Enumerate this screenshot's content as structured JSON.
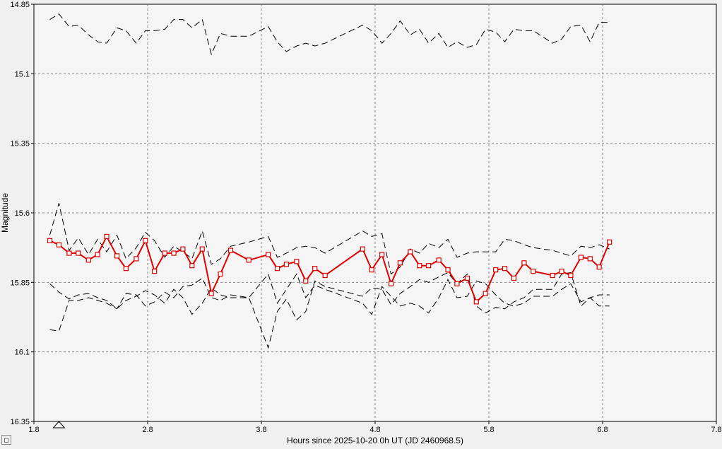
{
  "chart_data": {
    "type": "line",
    "xlabel": "Hours since 2025-10-20 0h UT (JD 2460968.5)",
    "ylabel": "Magnitude",
    "xlim": [
      1.8,
      7.8
    ],
    "ylim": [
      14.85,
      16.35
    ],
    "y_inverted": true,
    "grid": true,
    "x_ticks": [
      "1.8",
      "2.8",
      "3.8",
      "4.8",
      "5.8",
      "6.8",
      "7.8"
    ],
    "y_ticks": [
      "14.85",
      "15.1",
      "15.35",
      "15.6",
      "15.85",
      "16.1",
      "16.35"
    ],
    "marker_x": 2.02,
    "colors": {
      "target": "#dd0000",
      "comparison": "#000000",
      "plot_bg": "#f5f5f5",
      "grid": "#888888"
    },
    "series": [
      {
        "role": "target",
        "x": [
          1.94,
          2.02,
          2.11,
          2.19,
          2.28,
          2.36,
          2.44,
          2.53,
          2.61,
          2.7,
          2.78,
          2.86,
          2.95,
          3.03,
          3.11,
          3.19,
          3.28,
          3.36,
          3.44,
          3.53,
          3.69,
          3.86,
          3.94,
          4.02,
          4.11,
          4.19,
          4.27,
          4.36,
          4.69,
          4.77,
          4.86,
          4.94,
          5.02,
          5.11,
          5.19,
          5.27,
          5.36,
          5.44,
          5.52,
          5.61,
          5.69,
          5.77,
          5.86,
          5.94,
          6.02,
          6.11,
          6.19,
          6.36,
          6.44,
          6.52,
          6.61,
          6.69,
          6.77,
          6.86
        ],
        "y": [
          15.7,
          15.715,
          15.745,
          15.745,
          15.77,
          15.75,
          15.685,
          15.755,
          15.8,
          15.765,
          15.7,
          15.81,
          15.745,
          15.745,
          15.73,
          15.79,
          15.73,
          15.89,
          15.82,
          15.735,
          15.77,
          15.75,
          15.8,
          15.785,
          15.775,
          15.845,
          15.8,
          15.825,
          15.73,
          15.805,
          15.75,
          15.855,
          15.78,
          15.74,
          15.79,
          15.79,
          15.77,
          15.805,
          15.855,
          15.835,
          15.92,
          15.89,
          15.805,
          15.8,
          15.835,
          15.78,
          15.81,
          15.825,
          15.81,
          15.825,
          15.76,
          15.765,
          15.795,
          15.705
        ]
      },
      {
        "role": "comparison-1",
        "x": [
          1.94,
          2.02,
          2.11,
          2.19,
          2.28,
          2.36,
          2.44,
          2.53,
          2.61,
          2.7,
          2.78,
          2.86,
          2.95,
          3.03,
          3.11,
          3.19,
          3.28,
          3.36,
          3.44,
          3.53,
          3.69,
          3.86,
          3.94,
          4.02,
          4.11,
          4.19,
          4.27,
          4.36,
          4.69,
          4.77,
          4.86,
          4.94,
          5.02,
          5.11,
          5.19,
          5.27,
          5.36,
          5.44,
          5.52,
          5.61,
          5.69,
          5.77,
          5.86,
          5.94,
          6.02,
          6.11,
          6.19,
          6.36,
          6.44,
          6.52,
          6.61,
          6.69,
          6.77,
          6.86
        ],
        "y": [
          14.905,
          14.885,
          14.93,
          14.925,
          14.96,
          14.985,
          14.99,
          14.935,
          14.945,
          14.99,
          14.945,
          14.945,
          14.94,
          14.905,
          14.905,
          14.935,
          14.905,
          15.03,
          14.955,
          14.965,
          14.965,
          14.93,
          14.985,
          15.02,
          15.0,
          14.99,
          15.0,
          14.99,
          14.925,
          14.945,
          14.99,
          14.955,
          14.91,
          14.96,
          14.94,
          14.99,
          14.955,
          15.005,
          14.985,
          15.005,
          14.995,
          14.94,
          14.95,
          14.985,
          14.94,
          14.945,
          14.945,
          14.99,
          14.975,
          14.93,
          14.925,
          14.985,
          14.915,
          14.915
        ]
      },
      {
        "role": "comparison-2",
        "x": [
          1.94,
          2.02,
          2.11,
          2.19,
          2.28,
          2.36,
          2.44,
          2.53,
          2.61,
          2.7,
          2.78,
          2.86,
          2.95,
          3.03,
          3.11,
          3.19,
          3.28,
          3.36,
          3.44,
          3.53,
          3.69,
          3.86,
          3.94,
          4.02,
          4.11,
          4.19,
          4.27,
          4.36,
          4.69,
          4.77,
          4.86,
          4.94,
          5.02,
          5.11,
          5.19,
          5.27,
          5.36,
          5.44,
          5.52,
          5.61,
          5.69,
          5.77,
          5.86,
          5.94,
          6.02,
          6.11,
          6.19,
          6.36,
          6.44,
          6.52,
          6.61,
          6.69,
          6.77,
          6.86
        ],
        "y": [
          15.68,
          15.565,
          15.735,
          15.69,
          15.75,
          15.695,
          15.74,
          15.68,
          15.765,
          15.725,
          15.67,
          15.7,
          15.76,
          15.72,
          15.74,
          15.765,
          15.665,
          15.785,
          15.765,
          15.72,
          15.705,
          15.685,
          15.76,
          15.745,
          15.725,
          15.72,
          15.725,
          15.745,
          15.665,
          15.685,
          15.675,
          15.82,
          15.795,
          15.73,
          15.745,
          15.71,
          15.725,
          15.695,
          15.76,
          15.745,
          15.74,
          15.74,
          15.74,
          15.695,
          15.7,
          15.715,
          15.725,
          15.735,
          15.745,
          15.755,
          15.72,
          15.725,
          15.715,
          15.73
        ]
      },
      {
        "role": "comparison-3",
        "x": [
          1.94,
          2.02,
          2.11,
          2.19,
          2.28,
          2.36,
          2.44,
          2.53,
          2.61,
          2.7,
          2.78,
          2.86,
          2.95,
          3.03,
          3.11,
          3.19,
          3.28,
          3.36,
          3.44,
          3.53,
          3.69,
          3.86,
          3.94,
          4.02,
          4.11,
          4.19,
          4.27,
          4.36,
          4.69,
          4.77,
          4.86,
          4.94,
          5.02,
          5.11,
          5.19,
          5.27,
          5.36,
          5.44,
          5.52,
          5.61,
          5.69,
          5.77,
          5.86,
          5.94,
          6.02,
          6.11,
          6.19,
          6.36,
          6.44,
          6.52,
          6.61,
          6.69,
          6.77,
          6.86
        ],
        "y": [
          15.855,
          15.885,
          15.91,
          15.895,
          15.89,
          15.905,
          15.915,
          15.945,
          15.915,
          15.9,
          15.88,
          15.895,
          15.925,
          15.875,
          15.905,
          15.965,
          15.925,
          15.87,
          15.895,
          15.905,
          15.905,
          15.82,
          15.925,
          15.875,
          15.82,
          15.905,
          15.86,
          15.875,
          15.925,
          15.965,
          15.865,
          15.9,
          15.935,
          15.925,
          15.935,
          15.96,
          15.905,
          15.84,
          15.905,
          15.9,
          15.845,
          15.855,
          15.895,
          15.925,
          15.935,
          15.925,
          15.9,
          15.9,
          15.875,
          15.855,
          15.92,
          15.905,
          15.895,
          15.895
        ]
      },
      {
        "role": "comparison-4",
        "x": [
          1.94,
          2.02,
          2.11,
          2.19,
          2.28,
          2.36,
          2.44,
          2.53,
          2.61,
          2.7,
          2.78,
          2.86,
          2.95,
          3.03,
          3.11,
          3.19,
          3.28,
          3.36,
          3.44,
          3.53,
          3.69,
          3.86,
          3.94,
          4.02,
          4.11,
          4.19,
          4.27,
          4.36,
          4.69,
          4.77,
          4.86,
          4.94,
          5.02,
          5.11,
          5.19,
          5.27,
          5.36,
          5.44,
          5.52,
          5.61,
          5.69,
          5.77,
          5.86,
          5.94,
          6.02,
          6.11,
          6.19,
          6.36,
          6.44,
          6.52,
          6.61,
          6.69,
          6.77,
          6.86
        ],
        "y": [
          16.02,
          16.025,
          15.915,
          15.915,
          15.905,
          15.915,
          15.925,
          15.945,
          15.89,
          15.895,
          15.935,
          15.92,
          15.885,
          15.905,
          15.865,
          15.86,
          15.835,
          15.905,
          15.915,
          15.895,
          15.905,
          16.085,
          15.955,
          15.91,
          15.985,
          15.955,
          15.845,
          15.865,
          15.9,
          15.87,
          15.875,
          15.93,
          15.89,
          15.865,
          15.84,
          15.85,
          15.83,
          15.815,
          15.855,
          15.82,
          15.935,
          15.96,
          15.94,
          15.945,
          15.92,
          15.905,
          15.875,
          15.875,
          15.82,
          15.815,
          15.935,
          15.905,
          15.935,
          15.935
        ]
      }
    ]
  },
  "ui": {
    "corner_button_label": "◻"
  }
}
